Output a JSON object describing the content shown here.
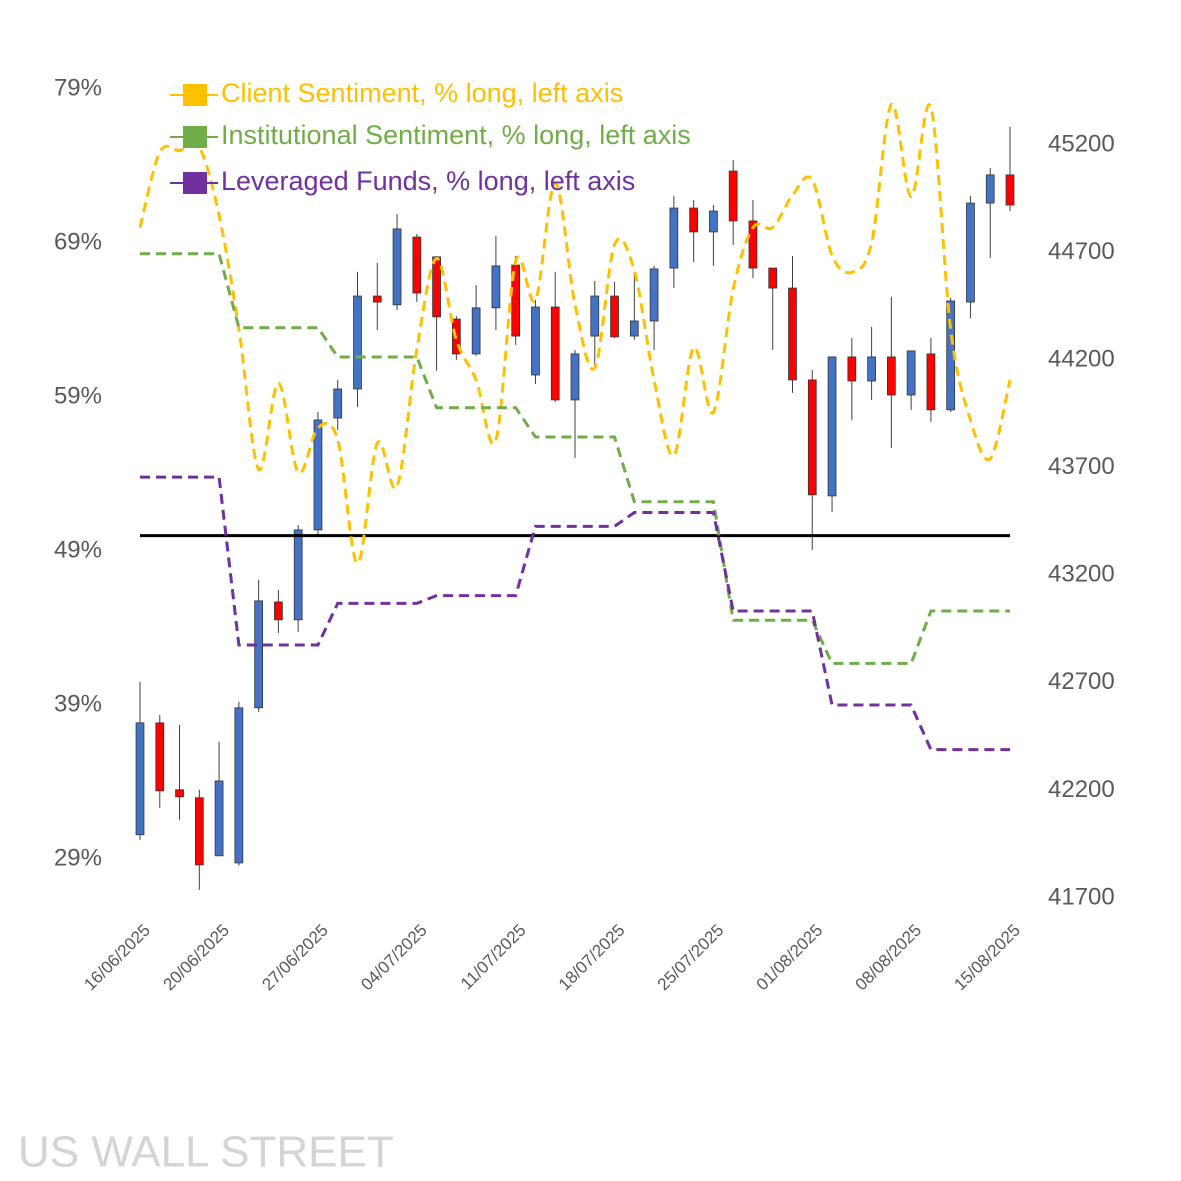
{
  "chart_data": {
    "type": "candlestick",
    "watermark": "US WALL STREET",
    "categories": [
      "16/06/2025",
      null,
      null,
      null,
      "20/06/2025",
      null,
      null,
      null,
      null,
      "27/06/2025",
      null,
      null,
      null,
      null,
      "04/07/2025",
      null,
      null,
      null,
      null,
      "11/07/2025",
      null,
      null,
      null,
      null,
      "18/07/2025",
      null,
      null,
      null,
      null,
      "25/07/2025",
      null,
      null,
      null,
      null,
      "01/08/2025",
      null,
      null,
      null,
      null,
      "08/08/2025",
      null,
      null,
      null,
      null,
      "15/08/2025"
    ],
    "candles": {
      "axis": "y2",
      "up_color": "#4472c4",
      "down_color": "#ff0000",
      "open": [
        41994,
        42514,
        42203,
        42166,
        41896,
        41863,
        42584,
        43076,
        42993,
        43411,
        43931,
        44066,
        44498,
        44457,
        44772,
        44680,
        44391,
        44229,
        44443,
        44642,
        44131,
        44447,
        44015,
        44312,
        44498,
        44312,
        44382,
        44628,
        44907,
        44796,
        45079,
        44847,
        44628,
        44535,
        44108,
        43569,
        44215,
        44103,
        44215,
        44038,
        44229,
        43969,
        44470,
        44930,
        45061
      ],
      "high": [
        42705,
        42551,
        42505,
        42203,
        42426,
        42612,
        43179,
        43132,
        43434,
        43959,
        44108,
        44610,
        44652,
        44879,
        44786,
        44684,
        44405,
        44549,
        44777,
        44684,
        44480,
        44610,
        44247,
        44568,
        44563,
        44610,
        44638,
        44963,
        44944,
        44921,
        45130,
        44944,
        44628,
        44684,
        44154,
        44215,
        44303,
        44354,
        44494,
        44243,
        44303,
        44489,
        44963,
        45093,
        45284
      ],
      "low": [
        41970,
        42119,
        42063,
        41738,
        41896,
        41850,
        42565,
        42932,
        42937,
        43388,
        43876,
        43982,
        44340,
        44433,
        44470,
        44150,
        44201,
        44220,
        44340,
        44271,
        44089,
        44006,
        43746,
        44164,
        44303,
        44294,
        44247,
        44535,
        44656,
        44638,
        44735,
        44582,
        44247,
        44048,
        43318,
        43495,
        43922,
        44015,
        43792,
        43969,
        43913,
        43959,
        44396,
        44675,
        44893
      ],
      "close": [
        42514,
        42198,
        42170,
        41854,
        42244,
        42584,
        43081,
        42993,
        43411,
        43922,
        44066,
        44498,
        44470,
        44810,
        44512,
        44401,
        44229,
        44443,
        44638,
        44312,
        44447,
        44015,
        44229,
        44498,
        44308,
        44382,
        44624,
        44907,
        44796,
        44893,
        44847,
        44628,
        44535,
        44108,
        43574,
        44215,
        44103,
        44215,
        44038,
        44243,
        43969,
        44475,
        44930,
        45061,
        44921
      ]
    },
    "series": [
      {
        "name": "Client Sentiment, % long, left axis",
        "color": "#ffc000",
        "smooth": true,
        "values": [
          70.0,
          74.9,
          75.0,
          75.2,
          70.8,
          63.4,
          54.3,
          59.9,
          54.1,
          57.0,
          56.2,
          48.2,
          56.0,
          53.2,
          62.1,
          68.0,
          62.7,
          60.1,
          56.2,
          67.8,
          65.3,
          72.9,
          65.0,
          60.9,
          68.9,
          67.2,
          60.1,
          55.2,
          62.2,
          58.0,
          66.0,
          70.0,
          70.0,
          72.1,
          73.1,
          68.2,
          67.1,
          69.0,
          78.0,
          72.0,
          77.8,
          63.4,
          57.5,
          55.0,
          60.1
        ]
      },
      {
        "name": "Institutional Sentiment, % long, left axis",
        "color": "#70ad47",
        "smooth": false,
        "values": [
          68.3,
          68.3,
          68.3,
          68.3,
          68.3,
          63.5,
          63.5,
          63.5,
          63.5,
          63.5,
          61.6,
          61.6,
          61.6,
          61.6,
          61.6,
          58.3,
          58.3,
          58.3,
          58.3,
          58.3,
          56.4,
          56.4,
          56.4,
          56.4,
          56.4,
          52.2,
          52.2,
          52.2,
          52.2,
          52.2,
          44.5,
          44.5,
          44.5,
          44.5,
          44.5,
          41.7,
          41.7,
          41.7,
          41.7,
          41.7,
          45.1,
          45.1,
          45.1,
          45.1,
          45.1
        ]
      },
      {
        "name": "Leveraged Funds, % long, left axis",
        "color": "#7030a0",
        "smooth": false,
        "values": [
          53.8,
          53.8,
          53.8,
          53.8,
          53.8,
          42.9,
          42.9,
          42.9,
          42.9,
          42.9,
          45.6,
          45.6,
          45.6,
          45.6,
          45.6,
          46.1,
          46.1,
          46.1,
          46.1,
          46.1,
          50.6,
          50.6,
          50.6,
          50.6,
          50.6,
          51.5,
          51.5,
          51.5,
          51.5,
          51.5,
          45.1,
          45.1,
          45.1,
          45.1,
          45.1,
          39.0,
          39.0,
          39.0,
          39.0,
          39.0,
          36.1,
          36.1,
          36.1,
          36.1,
          36.1
        ]
      }
    ],
    "reference_line": 50,
    "ylim": [
      29,
      79
    ],
    "yticks": [
      {
        "value": 29,
        "label": "29%"
      },
      {
        "value": 39,
        "label": "39%"
      },
      {
        "value": 49,
        "label": "49%"
      },
      {
        "value": 59,
        "label": "59%"
      },
      {
        "value": 69,
        "label": "69%"
      },
      {
        "value": 79,
        "label": "79%"
      }
    ],
    "y2lim": [
      41700,
      45200
    ],
    "y2ticks": [
      41700,
      42200,
      42700,
      43200,
      43700,
      44200,
      44700,
      45200
    ],
    "legend": "top-left",
    "grid": false
  }
}
